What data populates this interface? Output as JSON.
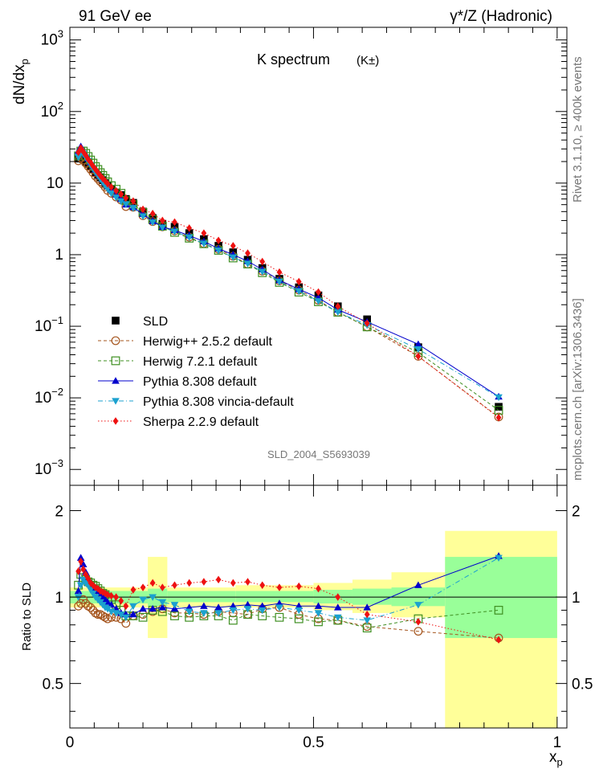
{
  "header": {
    "left": "91 GeV ee",
    "right": "γ*/Z (Hadronic)",
    "side_top": "Rivet 3.1.10, ≥ 400k events",
    "side_bottom": "mcplots.cern.ch [arXiv:1306.3436]"
  },
  "chart_data": [
    {
      "type": "scatter",
      "title": "K spectrum",
      "title_suffix": "(K±)",
      "ylabel": "dN/dx_p",
      "xlabel": "",
      "yscale": "log",
      "ylim": [
        0.0006,
        1500
      ],
      "xlim": [
        0,
        1.02
      ],
      "watermark": "SLD_2004_S5693039",
      "y_ticks": [
        "10^-3",
        "10^-2",
        "10^-1",
        "1",
        "10",
        "10^2",
        "10^3"
      ],
      "x": [
        0.0175,
        0.0225,
        0.0275,
        0.0325,
        0.0375,
        0.0425,
        0.0475,
        0.0525,
        0.0575,
        0.0625,
        0.0675,
        0.0725,
        0.0775,
        0.085,
        0.095,
        0.105,
        0.115,
        0.13,
        0.15,
        0.17,
        0.19,
        0.215,
        0.245,
        0.275,
        0.305,
        0.335,
        0.365,
        0.395,
        0.43,
        0.47,
        0.51,
        0.55,
        0.61,
        0.715,
        0.88
      ],
      "series": [
        {
          "name": "SLD",
          "color": "#000000",
          "marker": "square-filled",
          "values": [
            22,
            24,
            21.5,
            20,
            18.5,
            17,
            15.5,
            14.2,
            13,
            12,
            11,
            10,
            9.2,
            8.2,
            7.4,
            6.8,
            6.0,
            5.3,
            4.0,
            3.25,
            2.7,
            2.45,
            2.0,
            1.65,
            1.33,
            1.08,
            0.85,
            0.65,
            0.46,
            0.35,
            0.27,
            0.19,
            0.125,
            0.051,
            0.0075
          ]
        },
        {
          "name": "Herwig++ 2.5.2 default",
          "color": "#a5551e",
          "marker": "circle-open",
          "line": "dashed",
          "values": [
            20.5,
            22.5,
            21,
            19,
            17.2,
            15.6,
            14,
            12.5,
            11.5,
            10.5,
            9.7,
            8.8,
            7.9,
            7.2,
            6.4,
            5.8,
            4.7,
            4.6,
            3.5,
            2.9,
            2.45,
            2.15,
            1.76,
            1.43,
            1.19,
            0.95,
            0.74,
            0.59,
            0.43,
            0.32,
            0.23,
            0.157,
            0.098,
            0.038,
            0.0054
          ]
        },
        {
          "name": "Herwig 7.2.1 default",
          "color": "#3f8f22",
          "marker": "square-open",
          "line": "dashed",
          "values": [
            24,
            28,
            28,
            26,
            23.5,
            21,
            19,
            17,
            15.5,
            14,
            12.8,
            11.6,
            10.4,
            9.2,
            8.2,
            7.2,
            5.7,
            5.0,
            3.9,
            3.1,
            2.5,
            2.05,
            1.7,
            1.42,
            1.15,
            0.9,
            0.74,
            0.56,
            0.41,
            0.3,
            0.22,
            0.157,
            0.098,
            0.043,
            0.0067
          ]
        },
        {
          "name": "Pythia 8.308 default",
          "color": "#0000cc",
          "marker": "triangle-up",
          "line": "solid",
          "values": [
            28,
            32.5,
            28,
            25,
            22,
            19.5,
            17.3,
            15.4,
            13.8,
            12.5,
            11.3,
            10.2,
            9.3,
            8.1,
            6.9,
            6.0,
            5.0,
            4.6,
            3.7,
            2.95,
            2.45,
            2.2,
            1.85,
            1.53,
            1.22,
            1.0,
            0.81,
            0.62,
            0.44,
            0.33,
            0.25,
            0.17,
            0.115,
            0.056,
            0.0104
          ]
        },
        {
          "name": "Pythia 8.308 vincia-default",
          "color": "#1ba1cf",
          "marker": "triangle-down",
          "line": "dashdot",
          "values": [
            23,
            27,
            26,
            23,
            20.5,
            18,
            16,
            14.3,
            12.8,
            11.4,
            10.3,
            9.2,
            8.3,
            7.2,
            6.3,
            5.6,
            5.1,
            4.5,
            3.45,
            2.85,
            2.4,
            2.1,
            1.75,
            1.43,
            1.15,
            0.92,
            0.75,
            0.58,
            0.42,
            0.31,
            0.225,
            0.158,
            0.104,
            0.048,
            0.0102
          ]
        },
        {
          "name": "Sherpa 2.2.9 default",
          "color": "#ee1111",
          "marker": "diamond",
          "line": "dotted",
          "values": [
            27,
            31,
            27.5,
            24.5,
            21.5,
            19.5,
            17.3,
            15.6,
            14.1,
            12.7,
            11.6,
            10.7,
            9.8,
            8.8,
            7.8,
            7.0,
            6.2,
            5.6,
            4.3,
            3.75,
            3.0,
            2.85,
            2.35,
            2.0,
            1.58,
            1.33,
            1.05,
            0.8,
            0.57,
            0.42,
            0.3,
            0.19,
            0.11,
            0.038,
            0.0053
          ]
        }
      ]
    },
    {
      "type": "scatter",
      "title": "",
      "ylabel": "Ratio to SLD",
      "xlabel": "x_p",
      "ylim": [
        0.35,
        2.45
      ],
      "xlim": [
        0,
        1.02
      ],
      "x_ticks": [
        "0",
        "0.5",
        "1"
      ],
      "y_ticks": [
        "0.5",
        "1",
        "2"
      ],
      "bands": [
        {
          "x0": 0.0,
          "x1": 0.16,
          "inner": [
            0.95,
            1.05
          ],
          "outer": [
            0.92,
            1.08
          ]
        },
        {
          "x0": 0.16,
          "x1": 0.2,
          "inner": [
            0.93,
            1.07
          ],
          "outer": [
            0.72,
            1.38
          ]
        },
        {
          "x0": 0.2,
          "x1": 0.34,
          "inner": [
            0.96,
            1.05
          ],
          "outer": [
            0.92,
            1.08
          ]
        },
        {
          "x0": 0.34,
          "x1": 0.5,
          "inner": [
            0.96,
            1.05
          ],
          "outer": [
            0.92,
            1.1
          ]
        },
        {
          "x0": 0.5,
          "x1": 0.58,
          "inner": [
            0.95,
            1.06
          ],
          "outer": [
            0.9,
            1.12
          ]
        },
        {
          "x0": 0.58,
          "x1": 0.66,
          "inner": [
            0.94,
            1.07
          ],
          "outer": [
            0.88,
            1.15
          ]
        },
        {
          "x0": 0.66,
          "x1": 0.77,
          "inner": [
            0.93,
            1.08
          ],
          "outer": [
            0.85,
            1.22
          ]
        },
        {
          "x0": 0.77,
          "x1": 1.0,
          "inner": [
            0.72,
            1.38
          ],
          "outer": [
            0.35,
            1.7
          ]
        }
      ],
      "x": [
        0.0175,
        0.0225,
        0.0275,
        0.0325,
        0.0375,
        0.0425,
        0.0475,
        0.0525,
        0.0575,
        0.0625,
        0.0675,
        0.0725,
        0.0775,
        0.085,
        0.095,
        0.105,
        0.115,
        0.13,
        0.15,
        0.17,
        0.19,
        0.215,
        0.245,
        0.275,
        0.305,
        0.335,
        0.365,
        0.395,
        0.43,
        0.47,
        0.51,
        0.55,
        0.61,
        0.715,
        0.88
      ],
      "series": [
        {
          "name": "Herwig++ 2.5.2 default",
          "color": "#a5551e",
          "marker": "circle-open",
          "line": "dashed",
          "values": [
            0.93,
            0.95,
            0.98,
            0.95,
            0.93,
            0.92,
            0.9,
            0.88,
            0.87,
            0.87,
            0.86,
            0.85,
            0.84,
            0.85,
            0.85,
            0.84,
            0.81,
            0.86,
            0.87,
            0.89,
            0.91,
            0.88,
            0.88,
            0.87,
            0.89,
            0.88,
            0.87,
            0.91,
            0.92,
            0.87,
            0.84,
            0.83,
            0.79,
            0.76,
            0.72
          ]
        },
        {
          "name": "Herwig 7.2.1 default",
          "color": "#3f8f22",
          "marker": "square-open",
          "line": "dashed",
          "values": [
            1.1,
            1.2,
            1.17,
            1.15,
            1.13,
            1.12,
            1.1,
            1.09,
            1.07,
            1.05,
            1.03,
            1.02,
            1.0,
            0.98,
            0.94,
            0.9,
            0.86,
            0.86,
            0.85,
            0.9,
            0.89,
            0.86,
            0.85,
            0.86,
            0.86,
            0.83,
            0.87,
            0.86,
            0.85,
            0.84,
            0.82,
            0.83,
            0.78,
            0.84,
            0.9
          ]
        },
        {
          "name": "Pythia 8.308 default",
          "color": "#0000cc",
          "marker": "triangle-up",
          "line": "solid",
          "values": [
            1.05,
            1.37,
            1.3,
            1.22,
            1.16,
            1.12,
            1.09,
            1.07,
            1.05,
            1.03,
            1.0,
            0.98,
            0.96,
            0.94,
            0.91,
            0.88,
            0.87,
            0.87,
            0.91,
            0.91,
            0.92,
            0.91,
            0.92,
            0.93,
            0.92,
            0.93,
            0.94,
            0.93,
            0.95,
            0.93,
            0.93,
            0.92,
            0.92,
            1.1,
            1.39
          ]
        },
        {
          "name": "Pythia 8.308 vincia-default",
          "color": "#1ba1cf",
          "marker": "triangle-down",
          "line": "dashdot",
          "values": [
            1.0,
            1.1,
            1.15,
            1.12,
            1.1,
            1.06,
            1.03,
            1.0,
            0.98,
            0.96,
            0.94,
            0.92,
            0.91,
            0.89,
            0.88,
            0.87,
            0.85,
            0.93,
            0.98,
            1.0,
            0.96,
            0.94,
            0.89,
            0.88,
            0.88,
            0.9,
            0.91,
            0.9,
            0.92,
            0.9,
            0.88,
            0.85,
            0.83,
            0.94,
            1.37
          ]
        },
        {
          "name": "Sherpa 2.2.9 default",
          "color": "#ee1111",
          "marker": "diamond",
          "line": "dotted",
          "values": [
            1.23,
            1.33,
            1.25,
            1.2,
            1.16,
            1.12,
            1.1,
            1.08,
            1.07,
            1.05,
            1.04,
            1.03,
            1.02,
            1.01,
            1.0,
            0.97,
            0.93,
            1.06,
            1.08,
            1.12,
            1.08,
            1.1,
            1.12,
            1.13,
            1.15,
            1.12,
            1.13,
            1.1,
            1.08,
            1.09,
            1.07,
            1.0,
            0.87,
            0.82,
            0.71
          ]
        }
      ]
    }
  ]
}
